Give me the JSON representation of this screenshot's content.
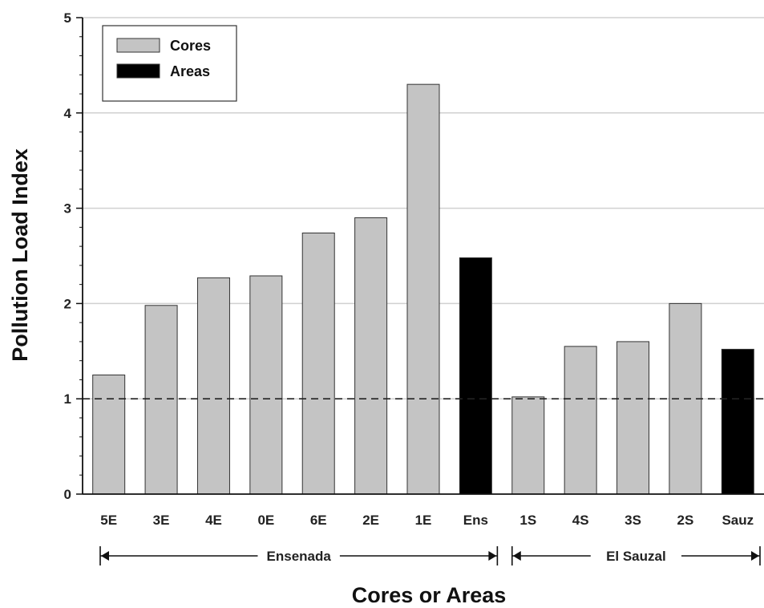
{
  "chart_data": {
    "type": "bar",
    "title": "",
    "xlabel": "Cores or Areas",
    "ylabel": "Pollution Load Index",
    "ylim": [
      0,
      5
    ],
    "yticks": [
      0,
      1,
      2,
      3,
      4,
      5
    ],
    "grid": "horizontal",
    "reference_line": 1,
    "legend_position": "top-left",
    "categories": [
      "5E",
      "3E",
      "4E",
      "0E",
      "6E",
      "2E",
      "1E",
      "Ens",
      "1S",
      "4S",
      "3S",
      "2S",
      "Sauz"
    ],
    "values": [
      1.25,
      1.98,
      2.27,
      2.29,
      2.74,
      2.9,
      4.3,
      2.48,
      1.02,
      1.55,
      1.6,
      2.0,
      1.52
    ],
    "kinds": [
      "core",
      "core",
      "core",
      "core",
      "core",
      "core",
      "core",
      "area",
      "core",
      "core",
      "core",
      "core",
      "area"
    ],
    "legend": [
      {
        "key": "core",
        "label": "Cores",
        "color": "#c4c4c4"
      },
      {
        "key": "area",
        "label": "Areas",
        "color": "#000000"
      }
    ],
    "groups": [
      {
        "label": "Ensenada",
        "from": "5E",
        "to": "Ens"
      },
      {
        "label": "El Sauzal",
        "from": "1S",
        "to": "Sauz"
      }
    ]
  }
}
